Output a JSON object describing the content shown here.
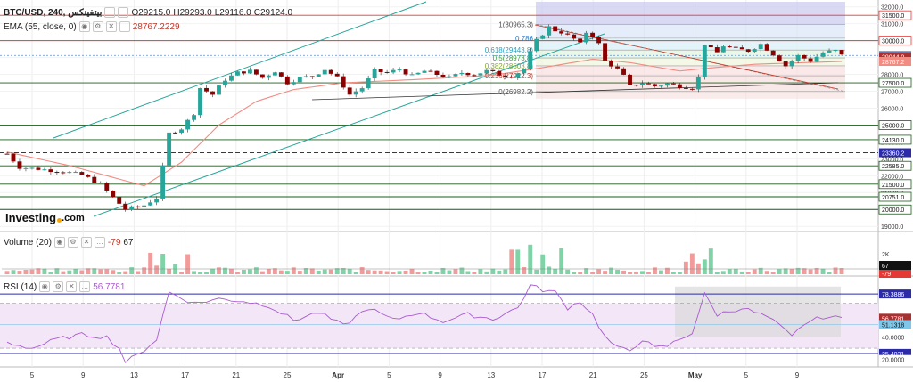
{
  "header": {
    "symbol": "BTC/USD, 240, بيتفينكس",
    "open": "O29215.0",
    "high": "H29293.0",
    "low": "L29116.0",
    "close": "C29124.0"
  },
  "ema_legend": {
    "label": "EMA (55, close, 0)",
    "value": "28767.2229"
  },
  "volume_legend": {
    "label": "Volume (20)",
    "value1": "-79",
    "value2": "67"
  },
  "rsi_legend": {
    "label": "RSI (14)",
    "value": "56.7781"
  },
  "logo": {
    "text": "Investing",
    "suffix": ".com"
  },
  "colors": {
    "up": "#26a69a",
    "down": "#8b0000",
    "ema": "#f28b82",
    "channel": "#26a69a",
    "rsi": "#a95ad1",
    "hline": "#1a5c1a",
    "red_line": "#e53935"
  },
  "chart_data": [
    {
      "type": "candlestick",
      "title": "",
      "x_ticks": [
        "5",
        "9",
        "13",
        "17",
        "21",
        "25",
        "Apr",
        "5",
        "9",
        "13",
        "17",
        "21",
        "25",
        "May",
        "5",
        "9"
      ],
      "y_ticks": [
        "32000.0",
        "31000.0",
        "30000.0",
        "29000.0",
        "28000.0",
        "27000.0",
        "26000.0",
        "25000.0",
        "24000.0",
        "23000.0",
        "22000.0",
        "21000.0",
        "20000.0",
        "19000.0"
      ],
      "ylim": [
        18800,
        32300
      ],
      "price_path": [
        [
          0,
          23300
        ],
        [
          2,
          22500
        ],
        [
          5,
          22400
        ],
        [
          9,
          22250
        ],
        [
          12,
          22050
        ],
        [
          15,
          21500
        ],
        [
          17,
          20700
        ],
        [
          19,
          20000
        ],
        [
          22,
          20250
        ],
        [
          24,
          20700
        ],
        [
          25,
          22500
        ],
        [
          26,
          24500
        ],
        [
          28,
          24800
        ],
        [
          30,
          25700
        ],
        [
          31,
          27200
        ],
        [
          33,
          26800
        ],
        [
          35,
          27700
        ],
        [
          37,
          28100
        ],
        [
          39,
          28200
        ],
        [
          41,
          27800
        ],
        [
          43,
          28200
        ],
        [
          45,
          27500
        ],
        [
          47,
          27800
        ],
        [
          49,
          27900
        ],
        [
          51,
          28300
        ],
        [
          53,
          27800
        ],
        [
          55,
          26800
        ],
        [
          57,
          27200
        ],
        [
          59,
          28200
        ],
        [
          61,
          28100
        ],
        [
          63,
          28300
        ],
        [
          65,
          27900
        ],
        [
          67,
          28200
        ],
        [
          69,
          28000
        ],
        [
          71,
          27800
        ],
        [
          73,
          28100
        ],
        [
          75,
          28000
        ],
        [
          77,
          28200
        ],
        [
          79,
          28000
        ],
        [
          81,
          27900
        ],
        [
          83,
          28300
        ],
        [
          84,
          29300
        ],
        [
          85,
          30000
        ],
        [
          86,
          30400
        ],
        [
          87,
          30800
        ],
        [
          88,
          30600
        ],
        [
          89,
          30500
        ],
        [
          90,
          30300
        ],
        [
          91,
          30100
        ],
        [
          92,
          29800
        ],
        [
          93,
          30500
        ],
        [
          94,
          30300
        ],
        [
          95,
          29800
        ],
        [
          96,
          28800
        ],
        [
          98,
          28300
        ],
        [
          99,
          27900
        ],
        [
          100,
          27300
        ],
        [
          102,
          27500
        ],
        [
          104,
          27300
        ],
        [
          106,
          27450
        ],
        [
          108,
          27300
        ],
        [
          110,
          27200
        ],
        [
          111,
          27800
        ],
        [
          112,
          29800
        ],
        [
          113,
          29500
        ],
        [
          114,
          29300
        ],
        [
          115,
          29700
        ],
        [
          117,
          29500
        ],
        [
          119,
          29400
        ],
        [
          121,
          29800
        ],
        [
          123,
          29200
        ],
        [
          125,
          28500
        ],
        [
          127,
          29100
        ],
        [
          129,
          28800
        ],
        [
          131,
          29300
        ],
        [
          133,
          29400
        ],
        [
          134,
          29124
        ]
      ],
      "ema_path": [
        [
          0,
          23400
        ],
        [
          10,
          22600
        ],
        [
          18,
          21800
        ],
        [
          22,
          21400
        ],
        [
          28,
          22800
        ],
        [
          34,
          25000
        ],
        [
          40,
          26400
        ],
        [
          46,
          27100
        ],
        [
          54,
          27500
        ],
        [
          66,
          27700
        ],
        [
          78,
          27950
        ],
        [
          86,
          28400
        ],
        [
          94,
          28900
        ],
        [
          100,
          28700
        ],
        [
          108,
          28200
        ],
        [
          112,
          28350
        ],
        [
          120,
          28600
        ],
        [
          134,
          28767
        ]
      ],
      "horizontal_lines": [
        {
          "price": 31500,
          "label": "31500.0",
          "color": "#e53935"
        },
        {
          "price": 30000,
          "label": "30000.0",
          "color": "#e53935"
        },
        {
          "price": 27500,
          "label": "27500.0",
          "color": "#1a5c1a"
        },
        {
          "price": 25000,
          "label": "25000.0",
          "color": "#1a5c1a"
        },
        {
          "price": 24130,
          "label": "24130.0",
          "color": "#1a5c1a"
        },
        {
          "price": 22585,
          "label": "22585.0",
          "color": "#1a5c1a"
        },
        {
          "price": 21500,
          "label": "21500.0",
          "color": "#1a5c1a"
        },
        {
          "price": 20751,
          "label": "20751.0",
          "color": "#1a5c1a"
        },
        {
          "price": 20000,
          "label": "20000.0",
          "color": "#1a5c1a"
        }
      ],
      "dashed_line": {
        "price": 23360.2,
        "label": "23360.2"
      },
      "price_labels": [
        {
          "price": 29124,
          "label": "29124.0",
          "bg": "#5b8fd6"
        },
        {
          "price": 29044,
          "label": "29044.0",
          "bg": "#a83232"
        },
        {
          "price": 28767,
          "label": "28767.2",
          "bg": "#f28b82"
        },
        {
          "price": 23360,
          "label": "23360.2",
          "bg": "#2b2ba8"
        }
      ],
      "fibonacci": [
        {
          "ratio": "1",
          "price": 30965.3,
          "label": "1(30965.3)"
        },
        {
          "ratio": "0.786",
          "price": 30144.6,
          "label": "0.786"
        },
        {
          "ratio": "0.618",
          "price": 29443.8,
          "label": "0.618(29443.8)"
        },
        {
          "ratio": "0.5",
          "price": 28973.8,
          "label": "0.5(28973.8)"
        },
        {
          "ratio": "0.382",
          "price": 28503.8,
          "label": "0.382(28503.8)"
        },
        {
          "ratio": "0.236",
          "price": 27922.3,
          "label": "0.236(27922.3)"
        },
        {
          "ratio": "0",
          "price": 26982.2,
          "label": "0(26982.2)"
        }
      ]
    },
    {
      "type": "bar",
      "title": "",
      "y_ticks": [
        "2K"
      ],
      "current_labels": [
        "67",
        "-79"
      ]
    },
    {
      "type": "line",
      "title": "",
      "y_ticks": [
        "78.3886",
        "56.7781",
        "51.1318",
        "40.0000",
        "25.4031",
        "20.0000"
      ],
      "ylim": [
        15,
        88
      ],
      "rsi_path": [
        [
          0,
          35
        ],
        [
          4,
          30
        ],
        [
          8,
          38
        ],
        [
          12,
          42
        ],
        [
          16,
          40
        ],
        [
          18,
          30
        ],
        [
          19,
          18
        ],
        [
          21,
          24
        ],
        [
          24,
          38
        ],
        [
          26,
          80
        ],
        [
          30,
          70
        ],
        [
          34,
          74
        ],
        [
          38,
          72
        ],
        [
          42,
          68
        ],
        [
          46,
          55
        ],
        [
          50,
          62
        ],
        [
          54,
          50
        ],
        [
          58,
          66
        ],
        [
          62,
          55
        ],
        [
          66,
          62
        ],
        [
          70,
          54
        ],
        [
          74,
          60
        ],
        [
          78,
          56
        ],
        [
          82,
          66
        ],
        [
          84,
          86
        ],
        [
          86,
          82
        ],
        [
          88,
          80
        ],
        [
          90,
          66
        ],
        [
          92,
          72
        ],
        [
          94,
          60
        ],
        [
          96,
          40
        ],
        [
          98,
          30
        ],
        [
          100,
          28
        ],
        [
          102,
          38
        ],
        [
          104,
          30
        ],
        [
          106,
          32
        ],
        [
          108,
          38
        ],
        [
          110,
          44
        ],
        [
          112,
          78
        ],
        [
          114,
          60
        ],
        [
          118,
          66
        ],
        [
          122,
          58
        ],
        [
          124,
          50
        ],
        [
          126,
          40
        ],
        [
          128,
          52
        ],
        [
          131,
          58
        ],
        [
          134,
          56.78
        ]
      ]
    }
  ]
}
